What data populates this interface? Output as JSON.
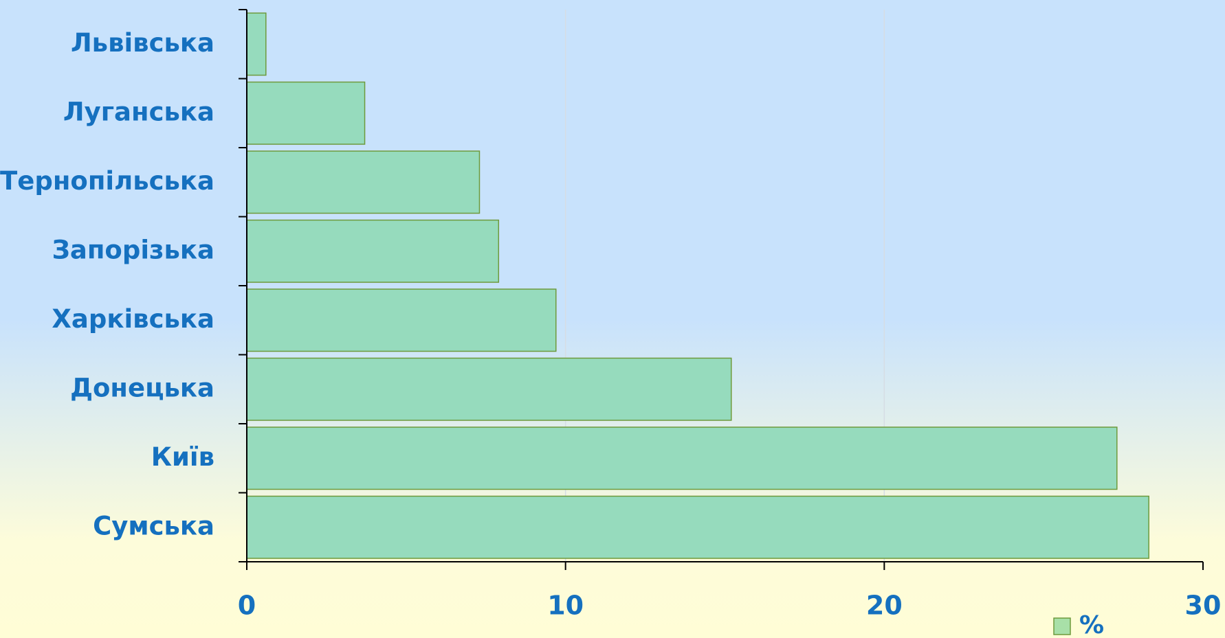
{
  "chart_data": {
    "type": "barh",
    "categories": [
      "Львівська",
      "Луганська",
      "Тернопільська",
      "Запорізька",
      "Харківська",
      "Донецька",
      "Київ",
      "Сумська"
    ],
    "series": [
      {
        "name": "%",
        "color": "#96dbbd",
        "values": [
          0.6,
          3.7,
          7.3,
          7.9,
          9.7,
          15.2,
          27.3,
          28.3
        ]
      }
    ],
    "xlim": [
      0,
      30
    ],
    "xticks": [
      0,
      10,
      20,
      30
    ],
    "grid": true,
    "legend": "bottom-right"
  }
}
